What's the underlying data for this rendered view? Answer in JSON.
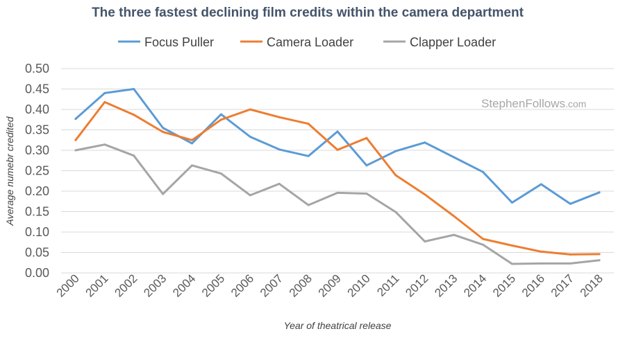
{
  "chart_data": {
    "type": "line",
    "title": "The three fastest declining film credits within the camera department",
    "xlabel": "Year of theatrical release",
    "ylabel": "Average numebr credited",
    "categories": [
      "2000",
      "2001",
      "2002",
      "2003",
      "2004",
      "2005",
      "2006",
      "2007",
      "2008",
      "2009",
      "2010",
      "2011",
      "2012",
      "2013",
      "2014",
      "2015",
      "2016",
      "2017",
      "2018"
    ],
    "ylim": [
      0,
      0.5
    ],
    "yticks": [
      "0.00",
      "0.05",
      "0.10",
      "0.15",
      "0.20",
      "0.25",
      "0.30",
      "0.35",
      "0.40",
      "0.45",
      "0.50"
    ],
    "ytick_values": [
      0,
      0.05,
      0.1,
      0.15,
      0.2,
      0.25,
      0.3,
      0.35,
      0.4,
      0.45,
      0.5
    ],
    "grid": true,
    "legend_position": "top",
    "watermark": "StephenFollows",
    "watermark_suffix": ".com",
    "series": [
      {
        "name": "Focus Puller",
        "color": "#5b9bd5",
        "values": [
          0.377,
          0.44,
          0.45,
          0.355,
          0.317,
          0.388,
          0.333,
          0.302,
          0.286,
          0.346,
          0.263,
          0.298,
          0.319,
          0.283,
          0.247,
          0.172,
          0.217,
          0.169,
          0.197
        ]
      },
      {
        "name": "Camera Loader",
        "color": "#ed7d31",
        "values": [
          0.325,
          0.418,
          0.387,
          0.345,
          0.325,
          0.375,
          0.4,
          0.381,
          0.365,
          0.301,
          0.33,
          0.239,
          0.192,
          0.139,
          0.083,
          0.067,
          0.052,
          0.045,
          0.046
        ]
      },
      {
        "name": "Clapper Loader",
        "color": "#a5a5a5",
        "values": [
          0.3,
          0.314,
          0.287,
          0.193,
          0.263,
          0.243,
          0.19,
          0.218,
          0.166,
          0.196,
          0.194,
          0.149,
          0.077,
          0.093,
          0.069,
          0.022,
          0.023,
          0.023,
          0.031
        ]
      }
    ]
  }
}
